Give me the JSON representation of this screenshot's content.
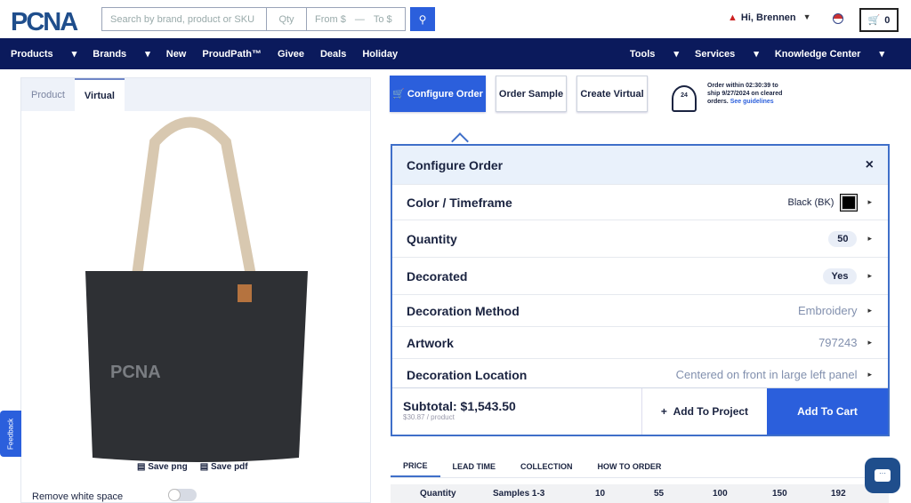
{
  "header": {
    "logo": "PCNA",
    "search_placeholder": "Search by brand, product or SKU",
    "qty_placeholder": "Qty",
    "from_placeholder": "From $",
    "dash": "—",
    "to_placeholder": "To $",
    "user": "Hi, Brennen",
    "cart_count": "0"
  },
  "nav": {
    "left": [
      "Products",
      "Brands",
      "New",
      "ProudPath™",
      "Givee",
      "Deals",
      "Holiday"
    ],
    "right": [
      "Tools",
      "Services",
      "Knowledge Center"
    ]
  },
  "left": {
    "tabs": [
      "Product",
      "Virtual"
    ],
    "save_png": "Save png",
    "save_pdf": "Save pdf",
    "remove_ws": "Remove white space",
    "feedback": "Feedback",
    "imprint": "PCNA"
  },
  "actions": {
    "configure": "Configure Order",
    "sample": "Order Sample",
    "virtual": "Create Virtual",
    "ship_text": "Order within 02:30:39 to ship 9/27/2024 on cleared orders.",
    "ship_link": "See guidelines"
  },
  "config": {
    "title": "Configure Order",
    "rows": [
      {
        "label": "Color / Timeframe",
        "value": "Black (BK)"
      },
      {
        "label": "Quantity",
        "value": "50"
      },
      {
        "label": "Decorated",
        "value": "Yes"
      },
      {
        "label": "Decoration Method",
        "value": "Embroidery"
      },
      {
        "label": "Artwork",
        "value": "797243"
      },
      {
        "label": "Decoration Location",
        "value": "Centered on front in large left panel"
      }
    ],
    "subtotal": "Subtotal: $1,543.50",
    "per_product": "$30.87 / product",
    "add_project": "Add To Project",
    "add_cart": "Add To Cart"
  },
  "price_tabs": [
    "PRICE",
    "LEAD TIME",
    "COLLECTION",
    "HOW TO ORDER"
  ],
  "price_header": [
    "Quantity",
    "Samples 1-3",
    "10",
    "55",
    "100",
    "150",
    "192"
  ],
  "colors": {
    "accent": "#2b5fdc",
    "navy": "#0b1a5c"
  }
}
